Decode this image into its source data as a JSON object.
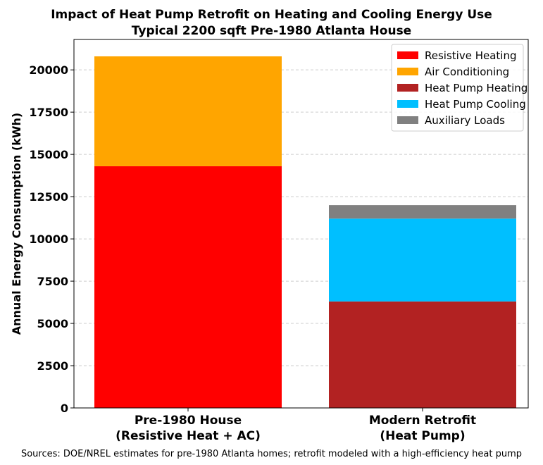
{
  "chart_data": {
    "type": "bar",
    "stacked": true,
    "title": "Impact of Heat Pump Retrofit on Heating and Cooling Energy Use",
    "subtitle": "Typical 2200 sqft Pre-1980 Atlanta House",
    "xlabel": "",
    "ylabel": "Annual Energy Consumption (kWh)",
    "categories": [
      "Pre-1980 House\n(Resistive Heat + AC)",
      "Modern Retrofit\n(Heat Pump)"
    ],
    "ylim": [
      0,
      21800
    ],
    "yticks": [
      0,
      2500,
      5000,
      7500,
      10000,
      12500,
      15000,
      17500,
      20000
    ],
    "grid": "y-dashed",
    "legend_position": "top-right",
    "series": [
      {
        "name": "Resistive Heating",
        "color": "#ff0000",
        "values": [
          14300,
          0
        ]
      },
      {
        "name": "Air Conditioning",
        "color": "#ffa500",
        "values": [
          6500,
          0
        ]
      },
      {
        "name": "Heat Pump Heating",
        "color": "#b22222",
        "values": [
          0,
          6300
        ]
      },
      {
        "name": "Heat Pump Cooling",
        "color": "#00bfff",
        "values": [
          0,
          4900
        ]
      },
      {
        "name": "Auxiliary Loads",
        "color": "#808080",
        "values": [
          0,
          800
        ]
      }
    ]
  },
  "footer": {
    "source_text": "Sources: DOE/NREL estimates for pre-1980 Atlanta homes; retrofit modeled with a high-efficiency heat pump"
  }
}
